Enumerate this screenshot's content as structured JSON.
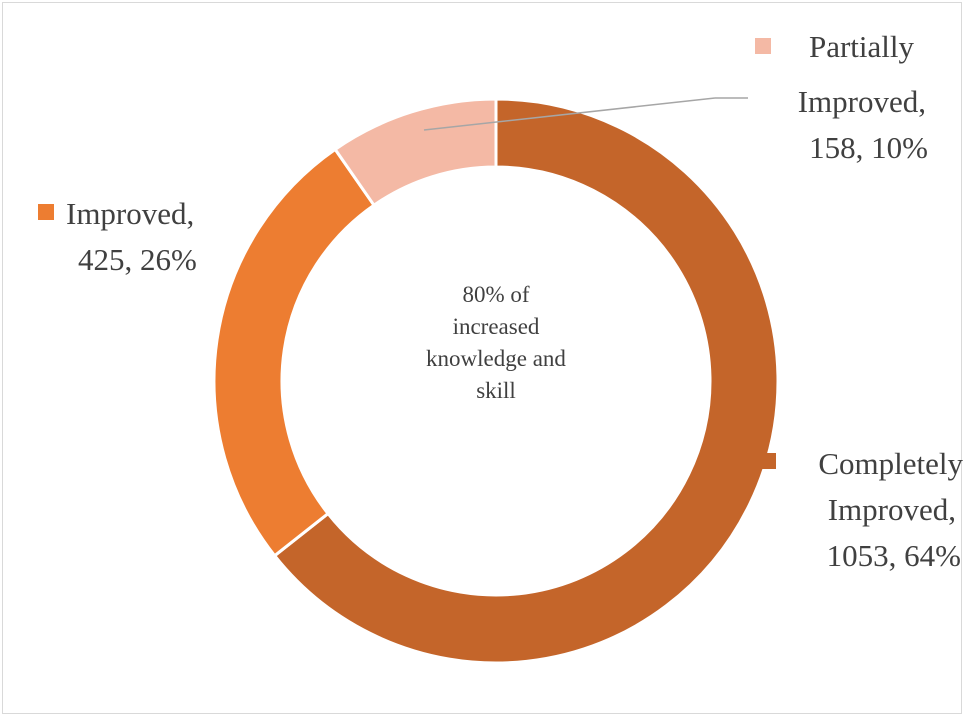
{
  "chart_data": {
    "type": "donut",
    "center_text": [
      "80% of",
      "increased",
      "knowledge and",
      "skill"
    ],
    "series": [
      {
        "category": "Completely Improved",
        "value": 1053,
        "percent": "64%",
        "color": "#c4652a",
        "label_lines": [
          "Completely",
          "Improved,",
          "1053, 64%"
        ]
      },
      {
        "category": "Improved",
        "value": 425,
        "percent": "26%",
        "color": "#ed7d31",
        "label_lines": [
          "Improved,",
          "425, 26%"
        ]
      },
      {
        "category": "Partially Improved",
        "value": 158,
        "percent": "10%",
        "color": "#f4b9a5",
        "label_lines": [
          "Partially",
          "Improved,",
          "158, 10%"
        ]
      }
    ]
  }
}
